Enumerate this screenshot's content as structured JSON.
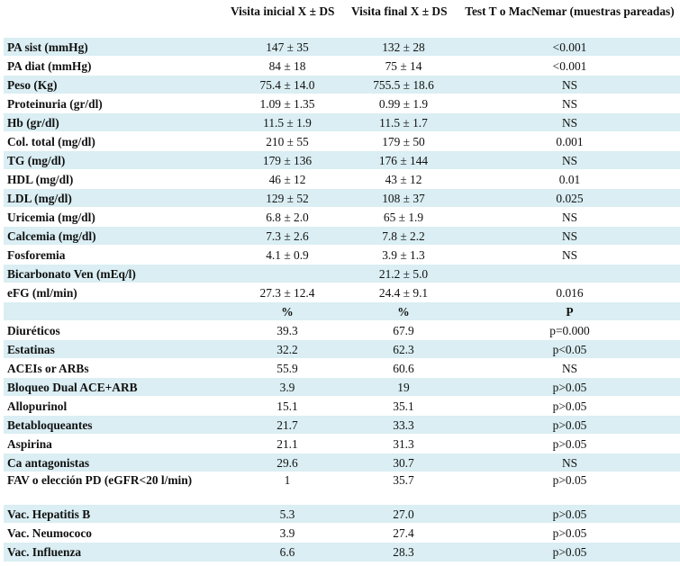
{
  "header": {
    "col0": "",
    "col1": "Visita inicial X ± DS",
    "col2": "Visita final X ± DS",
    "col3": "Test T o MacNemar (muestras pareadas)"
  },
  "rows_continuous": [
    {
      "label": "PA sist (mmHg)",
      "v1": "147 ± 35",
      "v2": "132 ± 28",
      "p": "<0.001"
    },
    {
      "label": "PA diat (mmHg)",
      "v1": "84 ± 18",
      "v2": "75 ± 14",
      "p": "<0.001"
    },
    {
      "label": "Peso (Kg)",
      "v1": "75.4 ± 14.0",
      "v2": "755.5 ± 18.6",
      "p": "NS"
    },
    {
      "label": "Proteinuria (gr/dl)",
      "v1": "1.09 ± 1.35",
      "v2": "0.99 ± 1.9",
      "p": "NS"
    },
    {
      "label": "Hb (gr/dl)",
      "v1": "11.5 ± 1.9",
      "v2": "11.5 ± 1.7",
      "p": "NS"
    },
    {
      "label": "Col. total (mg/dl)",
      "v1": "210 ± 55",
      "v2": "179 ± 50",
      "p": "0.001"
    },
    {
      "label": "TG (mg/dl)",
      "v1": "179 ± 136",
      "v2": "176 ± 144",
      "p": "NS"
    },
    {
      "label": "HDL (mg/dl)",
      "v1": "46 ± 12",
      "v2": "43 ± 12",
      "p": "0.01"
    },
    {
      "label": "LDL (mg/dl)",
      "v1": "129 ± 52",
      "v2": "108 ± 37",
      "p": "0.025"
    },
    {
      "label": "Uricemia (mg/dl)",
      "v1": "6.8 ± 2.0",
      "v2": "65 ± 1.9",
      "p": "NS"
    },
    {
      "label": "Calcemia (mg/dl)",
      "v1": "7.3 ± 2.6",
      "v2": "7.8 ± 2.2",
      "p": "NS"
    },
    {
      "label": "Fosforemia",
      "v1": "4.1 ± 0.9",
      "v2": "3.9 ± 1.3",
      "p": "NS"
    },
    {
      "label": "Bicarbonato Ven (mEq/l)",
      "v1": "",
      "v2": "21.2 ± 5.0",
      "p": ""
    },
    {
      "label": "eFG (ml/min)",
      "v1": "27.3 ± 12.4",
      "v2": "24.4 ± 9.1",
      "p": "0.016"
    }
  ],
  "subheader": {
    "c0": "",
    "c1": "%",
    "c2": "%",
    "c3": "P"
  },
  "rows_percent": [
    {
      "label": "Diuréticos",
      "v1": "39.3",
      "v2": "67.9",
      "p": "p=0.000"
    },
    {
      "label": "Estatinas",
      "v1": "32.2",
      "v2": "62.3",
      "p": "p<0.05"
    },
    {
      "label": "ACEIs or ARBs",
      "v1": "55.9",
      "v2": "60.6",
      "p": "NS"
    },
    {
      "label": "Bloqueo Dual ACE+ARB",
      "v1": "3.9",
      "v2": "19",
      "p": "p>0.05"
    },
    {
      "label": "Allopurinol",
      "v1": "15.1",
      "v2": "35.1",
      "p": "p>0.05"
    },
    {
      "label": "Betabloqueantes",
      "v1": "21.7",
      "v2": "33.3",
      "p": "p>0.05"
    },
    {
      "label": "Aspirina",
      "v1": "21.1",
      "v2": "31.3",
      "p": "p>0.05"
    },
    {
      "label": "Ca antagonistas",
      "v1": "29.6",
      "v2": "30.7",
      "p": "NS"
    },
    {
      "label": "FAV o elección PD (eGFR<20 l/min)",
      "v1": "1",
      "v2": "35.7",
      "p": "p>0.05"
    },
    {
      "label": "Vac. Hepatitis B",
      "v1": "5.3",
      "v2": "27.0",
      "p": "p>0.05"
    },
    {
      "label": "Vac. Neumococo",
      "v1": "3.9",
      "v2": "27.4",
      "p": "p>0.05"
    },
    {
      "label": "Vac. Influenza",
      "v1": "6.6",
      "v2": "28.3",
      "p": "p>0.05"
    }
  ]
}
